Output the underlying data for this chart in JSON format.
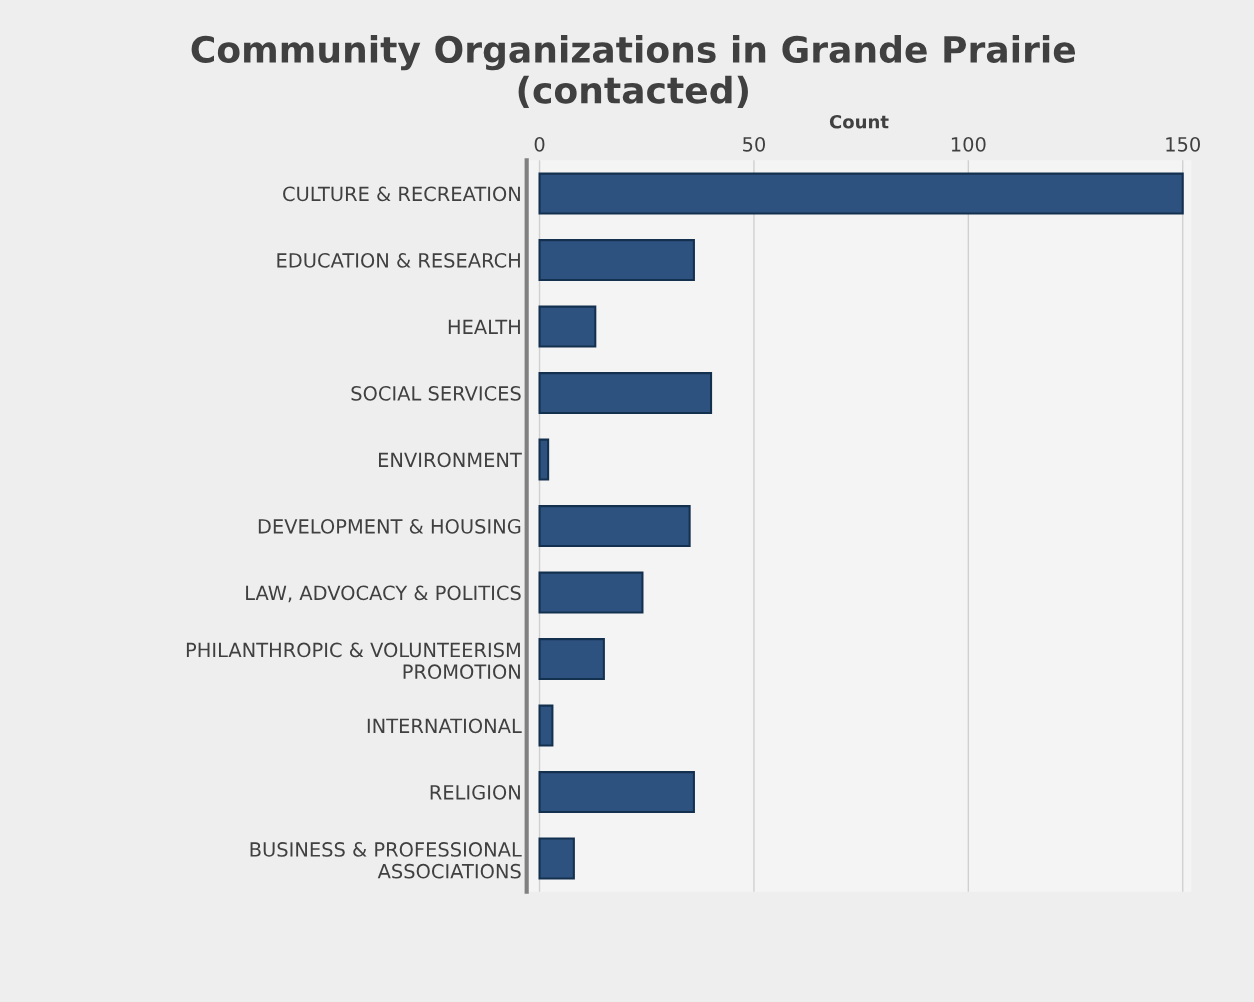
{
  "chart_data": {
    "type": "bar",
    "orientation": "horizontal",
    "title": "Community Organizations in Grande Prairie\n(contacted)",
    "xlabel": "Count",
    "categories": [
      "CULTURE & RECREATION",
      "EDUCATION & RESEARCH",
      "HEALTH",
      "SOCIAL SERVICES",
      "ENVIRONMENT",
      "DEVELOPMENT & HOUSING",
      "LAW, ADVOCACY & POLITICS",
      "PHILANTHROPIC & VOLUNTEERISM\nPROMOTION",
      "INTERNATIONAL",
      "RELIGION",
      "BUSINESS & PROFESSIONAL\nASSOCIATIONS"
    ],
    "values": [
      150,
      36,
      13,
      40,
      2,
      35,
      24,
      15,
      3,
      36,
      8
    ],
    "color": "#2e5280",
    "xlim": [
      -3,
      152
    ],
    "xticks": [
      0,
      50,
      100,
      150
    ],
    "grid": "x"
  }
}
